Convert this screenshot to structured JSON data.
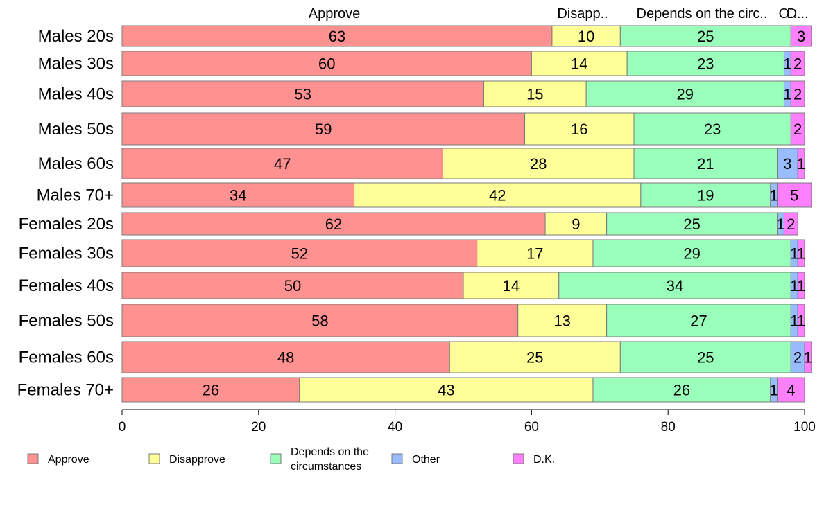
{
  "chart_data": {
    "type": "bar",
    "orientation": "horizontal",
    "stacked": true,
    "categories": [
      "Males 20s",
      "Males 30s",
      "Males 40s",
      "Males 50s",
      "Males 60s",
      "Males 70+",
      "Females 20s",
      "Females 30s",
      "Females 40s",
      "Females 50s",
      "Females 60s",
      "Females 70+"
    ],
    "series": [
      {
        "name": "Approve",
        "color": "#ff9290",
        "values": [
          63,
          60,
          53,
          59,
          47,
          34,
          62,
          52,
          50,
          58,
          48,
          26
        ]
      },
      {
        "name": "Disapprove",
        "color": "#ffff99",
        "values": [
          10,
          14,
          15,
          16,
          28,
          42,
          9,
          17,
          14,
          13,
          25,
          43
        ]
      },
      {
        "name": "Depends on the circumstances",
        "color": "#99ffbb",
        "values": [
          25,
          23,
          29,
          23,
          21,
          19,
          25,
          29,
          34,
          27,
          25,
          26
        ]
      },
      {
        "name": "Other",
        "color": "#99bbff",
        "values": [
          0,
          1,
          1,
          0,
          3,
          1,
          1,
          1,
          1,
          1,
          2,
          1
        ]
      },
      {
        "name": "D.K.",
        "color": "#ff80ff",
        "values": [
          3,
          2,
          2,
          2,
          1,
          5,
          2,
          1,
          1,
          1,
          1,
          4
        ]
      }
    ],
    "column_headers": [
      "Approve",
      "Disapp..",
      "Depends on the circ..",
      "O..",
      "D..."
    ],
    "xlim": [
      0,
      100
    ],
    "xticks": [
      "0",
      "20",
      "40",
      "60",
      "80",
      "100"
    ],
    "legend": {
      "position": "bottom",
      "items": [
        {
          "lines": [
            "Approve"
          ],
          "color": "#ff9290"
        },
        {
          "lines": [
            "Disapprove"
          ],
          "color": "#ffff99"
        },
        {
          "lines": [
            "Depends on the",
            "circumstances"
          ],
          "color": "#99ffbb"
        },
        {
          "lines": [
            "Other"
          ],
          "color": "#99bbff"
        },
        {
          "lines": [
            "D.K."
          ],
          "color": "#ff80ff"
        }
      ]
    },
    "grid": false
  }
}
